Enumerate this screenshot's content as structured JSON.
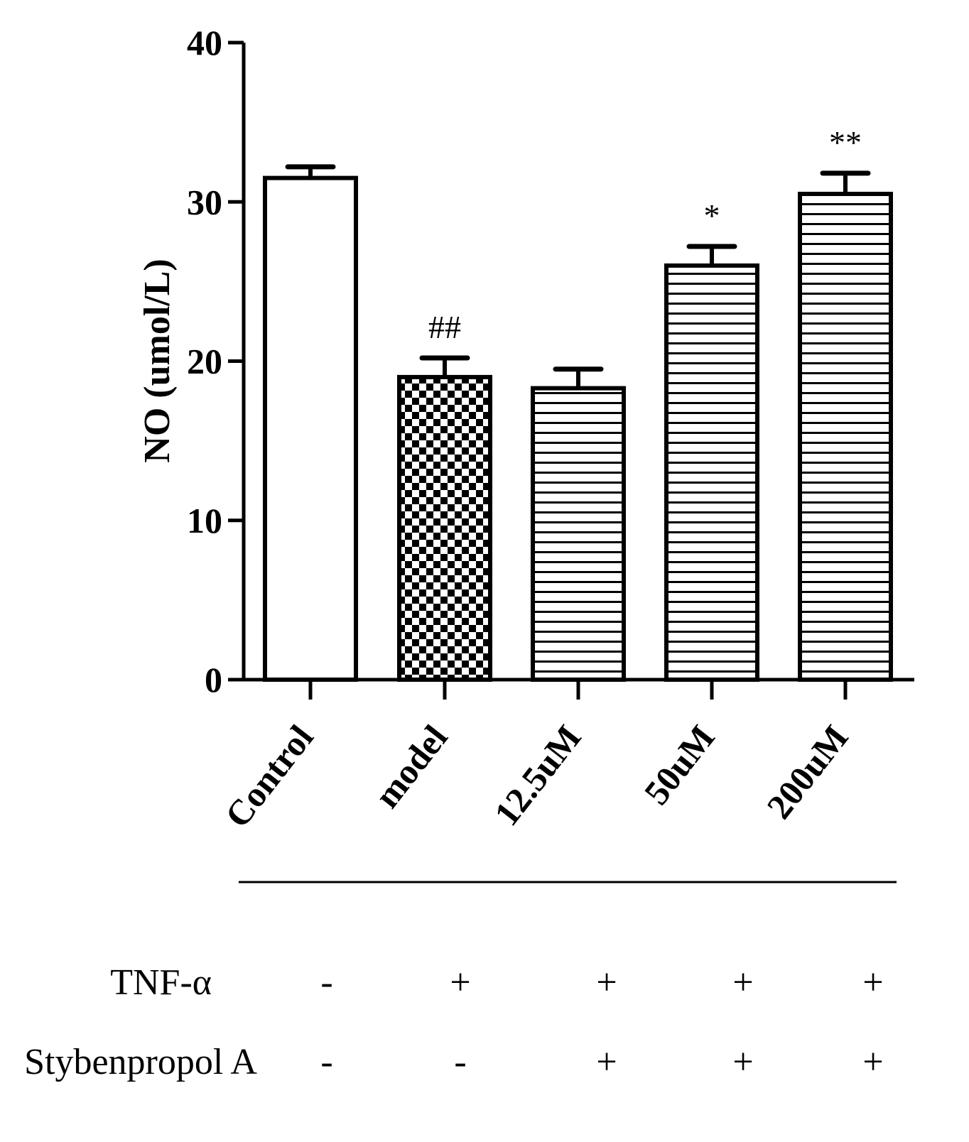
{
  "chart_data": {
    "type": "bar",
    "title": "",
    "xlabel": "",
    "ylabel": "NO (umol/L)",
    "ylim": [
      0,
      40
    ],
    "yticks": [
      0,
      10,
      20,
      30,
      40
    ],
    "grid": false,
    "categories": [
      "Control",
      "model",
      "12.5uM",
      "50uM",
      "200uM"
    ],
    "values": [
      31.5,
      19.0,
      18.3,
      26.0,
      30.5
    ],
    "errors": [
      0.7,
      1.2,
      1.2,
      1.2,
      1.3
    ],
    "fill_patterns": [
      "none",
      "checker",
      "horizontal-lines",
      "horizontal-lines",
      "horizontal-lines"
    ],
    "annotations": [
      "",
      "##",
      "",
      "*",
      "**"
    ]
  },
  "treatments": [
    {
      "label": "TNF-α",
      "marks": [
        "-",
        "+",
        "+",
        "+",
        "+"
      ]
    },
    {
      "label": "Stybenpropol A",
      "marks": [
        "-",
        "-",
        "+",
        "+",
        "+"
      ]
    }
  ],
  "colors": {
    "ink": "#000000",
    "background": "#ffffff"
  }
}
